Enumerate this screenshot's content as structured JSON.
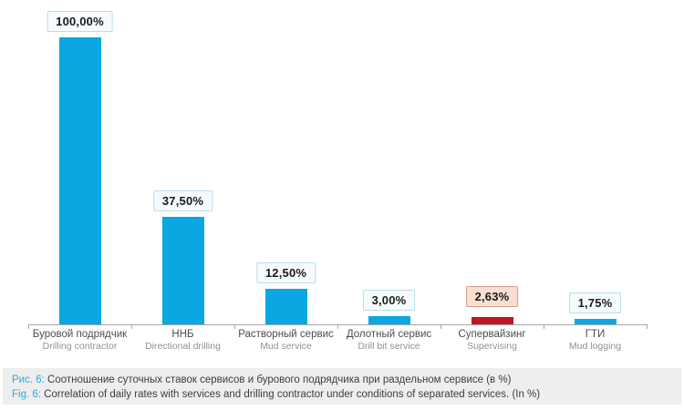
{
  "chart_data": {
    "type": "bar",
    "categories_ru": [
      "Буровой подрядчик",
      "ННБ",
      "Растворный сервис",
      "Долотный сервис",
      "Супервайзинг",
      "ГТИ"
    ],
    "categories_en": [
      "Drilling contractor",
      "Directional drilling",
      "Mud service",
      "Drill bit service",
      "Supervising",
      "Mud logging"
    ],
    "values": [
      100.0,
      37.5,
      12.5,
      3.0,
      2.63,
      1.75
    ],
    "value_labels": [
      "100,00%",
      "37,50%",
      "12,50%",
      "3,00%",
      "2,63%",
      "1,75%"
    ],
    "highlighted_index": 4,
    "bar_color": "#0ba7e3",
    "highlight_bar_color": "#be1622",
    "ylim": [
      0,
      100
    ],
    "grid": false,
    "legend": "none",
    "title": ""
  },
  "caption": {
    "line1_prefix": "Рис. 6:",
    "line1_text": " Соотношение суточных ставок сервисов и бурового подрядчика при раздельном сервисе (в %)",
    "line2_prefix": "Fig. 6:",
    "line2_text": " Correlation of daily rates with  services and drilling contractor under conditions of separated services. (In %)"
  }
}
